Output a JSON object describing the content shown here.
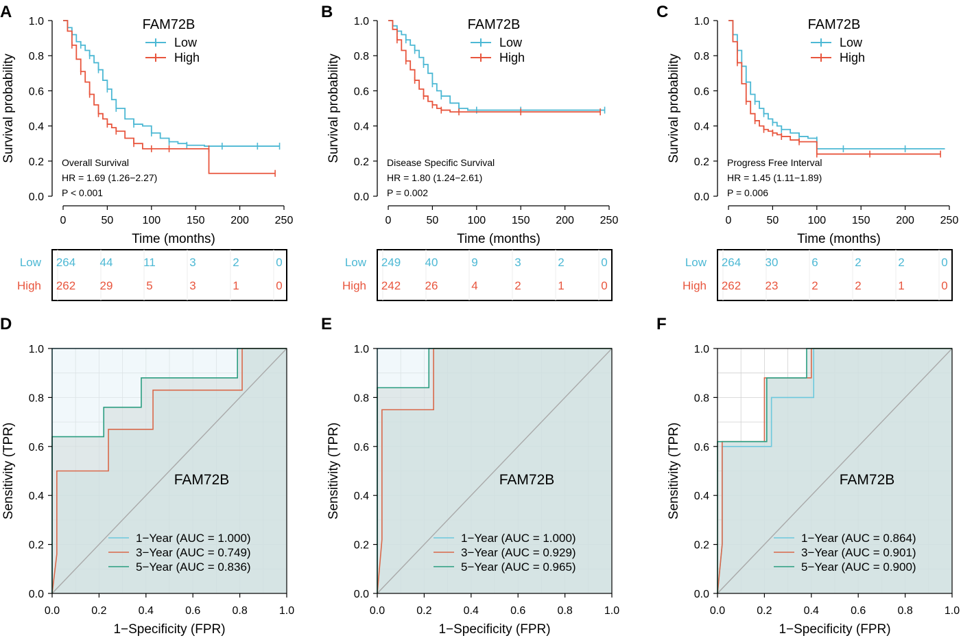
{
  "colors": {
    "low": "#4cb8d4",
    "high": "#e8553d",
    "roc1": "#6cc8dc",
    "roc3": "#d9684a",
    "roc5": "#2a9d80",
    "fill1": "#e6f3f7",
    "fill3": "#c9e8e8",
    "fill5": "#d2dada",
    "diag": "#a9a9a9",
    "grid": "#d0d0d0",
    "axis": "#000000"
  },
  "chart_data": [
    {
      "panel": "A",
      "type": "line",
      "title": "FAM72B",
      "xlabel": "Time (months)",
      "ylabel": "Survival probability",
      "xlim": [
        0,
        250
      ],
      "ylim": [
        0,
        1.0
      ],
      "xticks": [
        "0",
        "50",
        "100",
        "150",
        "200",
        "250"
      ],
      "yticks": [
        "0.0",
        "0.2",
        "0.4",
        "0.6",
        "0.8",
        "1.0"
      ],
      "legend": [
        "Low",
        "High"
      ],
      "annotation": [
        "Overall Survival",
        "HR = 1.69 (1.26−2.27)",
        "P < 0.001"
      ],
      "series": [
        {
          "name": "Low",
          "x": [
            0,
            5,
            10,
            15,
            20,
            25,
            30,
            35,
            40,
            45,
            50,
            55,
            60,
            70,
            80,
            90,
            100,
            110,
            120,
            130,
            140,
            160,
            180,
            200,
            220,
            240,
            245
          ],
          "y": [
            1.0,
            0.96,
            0.92,
            0.88,
            0.86,
            0.83,
            0.8,
            0.76,
            0.72,
            0.66,
            0.61,
            0.55,
            0.5,
            0.44,
            0.41,
            0.4,
            0.36,
            0.33,
            0.31,
            0.3,
            0.29,
            0.285,
            0.285,
            0.285,
            0.285,
            0.285,
            0.285
          ]
        },
        {
          "name": "High",
          "x": [
            0,
            5,
            10,
            15,
            20,
            25,
            30,
            35,
            40,
            45,
            50,
            55,
            60,
            70,
            80,
            90,
            100,
            110,
            120,
            140,
            165,
            165,
            240
          ],
          "y": [
            1.0,
            0.94,
            0.86,
            0.78,
            0.71,
            0.65,
            0.58,
            0.52,
            0.47,
            0.44,
            0.41,
            0.39,
            0.37,
            0.33,
            0.3,
            0.27,
            0.27,
            0.27,
            0.27,
            0.27,
            0.27,
            0.13,
            0.13
          ]
        }
      ],
      "risk_table": {
        "times": [
          0,
          50,
          100,
          150,
          200,
          250
        ],
        "Low": [
          264,
          44,
          11,
          3,
          2,
          0
        ],
        "High": [
          262,
          29,
          5,
          3,
          1,
          0
        ]
      }
    },
    {
      "panel": "B",
      "type": "line",
      "title": "FAM72B",
      "xlabel": "Time (months)",
      "ylabel": "Survival probability",
      "xlim": [
        0,
        250
      ],
      "ylim": [
        0,
        1.0
      ],
      "xticks": [
        "0",
        "50",
        "100",
        "150",
        "200",
        "250"
      ],
      "yticks": [
        "0.0",
        "0.2",
        "0.4",
        "0.6",
        "0.8",
        "1.0"
      ],
      "legend": [
        "Low",
        "High"
      ],
      "annotation": [
        "Disease Specific Survival",
        "HR = 1.80 (1.24−2.61)",
        "P = 0.002"
      ],
      "series": [
        {
          "name": "Low",
          "x": [
            0,
            5,
            10,
            15,
            20,
            25,
            30,
            35,
            40,
            45,
            50,
            55,
            60,
            70,
            80,
            90,
            100,
            120,
            150,
            200,
            245
          ],
          "y": [
            1.0,
            0.97,
            0.94,
            0.92,
            0.89,
            0.86,
            0.83,
            0.79,
            0.75,
            0.7,
            0.64,
            0.6,
            0.57,
            0.53,
            0.5,
            0.49,
            0.49,
            0.49,
            0.49,
            0.49,
            0.49
          ]
        },
        {
          "name": "High",
          "x": [
            0,
            5,
            10,
            15,
            20,
            25,
            30,
            35,
            40,
            45,
            50,
            55,
            60,
            70,
            80,
            100,
            150,
            200,
            240
          ],
          "y": [
            1.0,
            0.95,
            0.89,
            0.83,
            0.77,
            0.72,
            0.66,
            0.61,
            0.57,
            0.54,
            0.52,
            0.5,
            0.49,
            0.48,
            0.48,
            0.48,
            0.48,
            0.48,
            0.48
          ]
        }
      ],
      "risk_table": {
        "times": [
          0,
          50,
          100,
          150,
          200,
          250
        ],
        "Low": [
          249,
          40,
          9,
          3,
          2,
          0
        ],
        "High": [
          242,
          26,
          4,
          2,
          1,
          0
        ]
      }
    },
    {
      "panel": "C",
      "type": "line",
      "title": "FAM72B",
      "xlabel": "Time (months)",
      "ylabel": "Survival probability",
      "xlim": [
        0,
        250
      ],
      "ylim": [
        0,
        1.0
      ],
      "xticks": [
        "0",
        "50",
        "100",
        "150",
        "200",
        "250"
      ],
      "yticks": [
        "0.0",
        "0.2",
        "0.4",
        "0.6",
        "0.8",
        "1.0"
      ],
      "legend": [
        "Low",
        "High"
      ],
      "annotation": [
        "Progress Free Interval",
        "HR = 1.45 (1.11−1.89)",
        "P = 0.006"
      ],
      "series": [
        {
          "name": "Low",
          "x": [
            0,
            5,
            10,
            15,
            20,
            25,
            30,
            35,
            40,
            45,
            50,
            55,
            60,
            70,
            80,
            90,
            100,
            100,
            130,
            160,
            200,
            245
          ],
          "y": [
            1.0,
            0.92,
            0.83,
            0.74,
            0.65,
            0.58,
            0.54,
            0.5,
            0.47,
            0.44,
            0.42,
            0.4,
            0.38,
            0.36,
            0.34,
            0.33,
            0.32,
            0.27,
            0.27,
            0.27,
            0.27,
            0.27
          ]
        },
        {
          "name": "High",
          "x": [
            0,
            5,
            10,
            15,
            20,
            25,
            30,
            35,
            40,
            45,
            50,
            55,
            60,
            70,
            80,
            90,
            100,
            130,
            160,
            200,
            240
          ],
          "y": [
            1.0,
            0.88,
            0.76,
            0.64,
            0.54,
            0.47,
            0.43,
            0.4,
            0.38,
            0.37,
            0.36,
            0.35,
            0.34,
            0.32,
            0.31,
            0.31,
            0.24,
            0.24,
            0.24,
            0.24,
            0.24
          ]
        }
      ],
      "risk_table": {
        "times": [
          0,
          50,
          100,
          150,
          200,
          250
        ],
        "Low": [
          264,
          30,
          6,
          2,
          2,
          0
        ],
        "High": [
          262,
          23,
          2,
          2,
          1,
          0
        ]
      }
    },
    {
      "panel": "D",
      "type": "line",
      "title": "FAM72B",
      "xlabel": "1−Specificity (FPR)",
      "ylabel": "Sensitivity (TPR)",
      "xlim": [
        0,
        1.0
      ],
      "ylim": [
        0,
        1.0
      ],
      "xticks": [
        "0.0",
        "0.2",
        "0.4",
        "0.6",
        "0.8",
        "1.0"
      ],
      "yticks": [
        "0.0",
        "0.2",
        "0.4",
        "0.6",
        "0.8",
        "1.0"
      ],
      "series": [
        {
          "name": "1−Year (AUC = 1.000)",
          "x": [
            0,
            0,
            1
          ],
          "y": [
            0,
            1,
            1
          ]
        },
        {
          "name": "3−Year (AUC = 0.749)",
          "x": [
            0,
            0.02,
            0.02,
            0.24,
            0.24,
            0.43,
            0.43,
            0.81,
            0.81,
            1
          ],
          "y": [
            0,
            0.16,
            0.5,
            0.5,
            0.67,
            0.67,
            0.83,
            0.83,
            1,
            1
          ]
        },
        {
          "name": "5−Year (AUC = 0.836)",
          "x": [
            0,
            0,
            0.22,
            0.22,
            0.38,
            0.38,
            0.79,
            0.79,
            1
          ],
          "y": [
            0,
            0.64,
            0.64,
            0.76,
            0.76,
            0.88,
            0.88,
            1,
            1
          ]
        }
      ]
    },
    {
      "panel": "E",
      "type": "line",
      "title": "FAM72B",
      "xlabel": "1−Specificity (FPR)",
      "ylabel": "Sensitivity (TPR)",
      "xlim": [
        0,
        1.0
      ],
      "ylim": [
        0,
        1.0
      ],
      "xticks": [
        "0.0",
        "0.2",
        "0.4",
        "0.6",
        "0.8",
        "1.0"
      ],
      "yticks": [
        "0.0",
        "0.2",
        "0.4",
        "0.6",
        "0.8",
        "1.0"
      ],
      "series": [
        {
          "name": "1−Year (AUC = 1.000)",
          "x": [
            0,
            0,
            1
          ],
          "y": [
            0,
            1,
            1
          ]
        },
        {
          "name": "3−Year (AUC = 0.929)",
          "x": [
            0,
            0.02,
            0.02,
            0.24,
            0.24,
            1
          ],
          "y": [
            0,
            0.22,
            0.75,
            0.75,
            1,
            1
          ]
        },
        {
          "name": "5−Year (AUC = 0.965)",
          "x": [
            0,
            0,
            0.22,
            0.22,
            1
          ],
          "y": [
            0,
            0.84,
            0.84,
            1,
            1
          ]
        }
      ]
    },
    {
      "panel": "F",
      "type": "line",
      "title": "FAM72B",
      "xlabel": "1−Specificity (FPR)",
      "ylabel": "Sensitivity (TPR)",
      "xlim": [
        0,
        1.0
      ],
      "ylim": [
        0,
        1.0
      ],
      "xticks": [
        "0.0",
        "0.2",
        "0.4",
        "0.6",
        "0.8",
        "1.0"
      ],
      "yticks": [
        "0.0",
        "0.2",
        "0.4",
        "0.6",
        "0.8",
        "1.0"
      ],
      "series": [
        {
          "name": "1−Year (AUC = 0.864)",
          "x": [
            0,
            0.02,
            0.02,
            0.23,
            0.23,
            0.41,
            0.41,
            1
          ],
          "y": [
            0,
            0.2,
            0.6,
            0.6,
            0.8,
            0.8,
            1,
            1
          ]
        },
        {
          "name": "3−Year (AUC = 0.901)",
          "x": [
            0,
            0.02,
            0.02,
            0.2,
            0.2,
            0.4,
            0.4,
            1
          ],
          "y": [
            0,
            0.2,
            0.62,
            0.62,
            0.88,
            0.88,
            1,
            1
          ]
        },
        {
          "name": "5−Year (AUC = 0.900)",
          "x": [
            0,
            0,
            0.21,
            0.21,
            0.38,
            0.38,
            1
          ],
          "y": [
            0,
            0.62,
            0.62,
            0.88,
            0.88,
            1,
            1
          ]
        }
      ]
    }
  ]
}
